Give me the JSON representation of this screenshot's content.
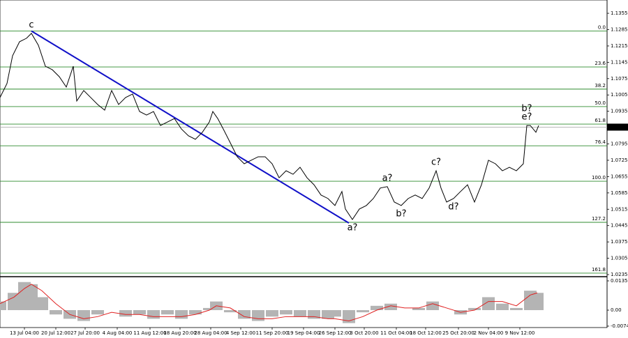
{
  "chart_data": [
    {
      "type": "line",
      "x": [
        0,
        2,
        3.6,
        5.6,
        7.6,
        9,
        11,
        13,
        15,
        17,
        19,
        21,
        22,
        24,
        26,
        28,
        30,
        32,
        34,
        36,
        38,
        40,
        42,
        44,
        46,
        48,
        50,
        52,
        54,
        56,
        58,
        60,
        61,
        62.4,
        64,
        66,
        68,
        70,
        72,
        74,
        76,
        78,
        80,
        82,
        84,
        86,
        88,
        90,
        92,
        94,
        96,
        98,
        99,
        101,
        103,
        105,
        107,
        109,
        111,
        113,
        115,
        117,
        119,
        121,
        123,
        125,
        126.4,
        128,
        130,
        132,
        134,
        136,
        138,
        140,
        142,
        144,
        146,
        148,
        150,
        151,
        152,
        153.6,
        154.4
      ],
      "values": [
        1.0994,
        1.1054,
        1.1173,
        1.1233,
        1.1248,
        1.1269,
        1.1218,
        1.1128,
        1.1113,
        1.1083,
        1.1039,
        1.1128,
        1.0979,
        1.1024,
        1.0994,
        1.0964,
        1.094,
        1.1024,
        1.0964,
        1.0994,
        1.1009,
        1.0934,
        1.0919,
        1.0934,
        1.0874,
        1.0889,
        1.0904,
        1.0859,
        1.083,
        1.0815,
        1.0845,
        1.0889,
        1.0934,
        1.0904,
        1.0859,
        1.08,
        1.074,
        1.071,
        1.0725,
        1.074,
        1.074,
        1.071,
        1.065,
        1.068,
        1.0665,
        1.0695,
        1.065,
        1.062,
        1.0576,
        1.0561,
        1.0531,
        1.0591,
        1.0516,
        1.0471,
        1.0516,
        1.0531,
        1.0561,
        1.0606,
        1.0612,
        1.0546,
        1.0531,
        1.0561,
        1.0576,
        1.0561,
        1.0606,
        1.068,
        1.0606,
        1.0546,
        1.0561,
        1.0591,
        1.062,
        1.0546,
        1.062,
        1.0725,
        1.071,
        1.068,
        1.0695,
        1.068,
        1.071,
        1.0874,
        1.0874,
        1.0845,
        1.0874
      ],
      "color": "#000000",
      "xlim": [
        0,
        174
      ],
      "ylim": [
        1.0226,
        1.1412
      ],
      "yticks": [
        1.1355,
        1.1285,
        1.1215,
        1.1145,
        1.1075,
        1.1005,
        1.0935,
        1.0865,
        1.0795,
        1.0725,
        1.0655,
        1.0585,
        1.0515,
        1.0445,
        1.0375,
        1.0305,
        1.0235
      ],
      "xticks": [
        {
          "value": 7,
          "label": "13 Jul 04:00"
        },
        {
          "value": 16,
          "label": "20 Jul 12:00"
        },
        {
          "value": 24.4,
          "label": "27 Jul 20:00"
        },
        {
          "value": 33.6,
          "label": "4 Aug 04:00"
        },
        {
          "value": 43,
          "label": "11 Aug 12:00"
        },
        {
          "value": 51.6,
          "label": "18 Aug 20:00"
        },
        {
          "value": 60.4,
          "label": "28 Aug 04:00"
        },
        {
          "value": 69,
          "label": "4 Sep 12:00"
        },
        {
          "value": 78,
          "label": "11 Sep 20:00"
        },
        {
          "value": 87,
          "label": "19 Sep 04:00"
        },
        {
          "value": 96,
          "label": "26 Sep 12:00"
        },
        {
          "value": 104.4,
          "label": "3 Oct 20:00"
        },
        {
          "value": 113.6,
          "label": "11 Oct 04:00"
        },
        {
          "value": 122,
          "label": "18 Oct 12:00"
        },
        {
          "value": 131.4,
          "label": "25 Oct 20:00"
        },
        {
          "value": 140,
          "label": "2 Nov 04:00"
        },
        {
          "value": 149,
          "label": "9 Nov 12:00"
        }
      ],
      "levels": [
        {
          "value": 1.1279,
          "label": "0.0"
        },
        {
          "value": 1.1125,
          "label": "23.6"
        },
        {
          "value": 1.103,
          "label": "38.2"
        },
        {
          "value": 1.0955,
          "label": "50.0"
        },
        {
          "value": 1.088,
          "label": "61.8"
        },
        {
          "value": 1.0787,
          "label": "76.4"
        },
        {
          "value": 1.0635,
          "label": "100.0"
        },
        {
          "value": 1.0459,
          "label": "127.2"
        },
        {
          "value": 1.0241,
          "label": "161.8"
        }
      ],
      "level_color": "#2e8b2e",
      "trendline": {
        "x": [
          9,
          100
        ],
        "values": [
          1.1279,
          1.0456
        ],
        "color": "#1010c8"
      },
      "last_price": 1.0867,
      "annotations": [
        {
          "text": "c",
          "point": 5,
          "color": "#1010c8",
          "position": "above"
        },
        {
          "text": "a?",
          "point": 53,
          "color": "#1010c8",
          "position": "below"
        },
        {
          "text": "a?",
          "point": 58,
          "color": "#e03030",
          "position": "above"
        },
        {
          "text": "b?",
          "point": 60,
          "color": "#e03030",
          "position": "below"
        },
        {
          "text": "c?",
          "point": 65,
          "color": "#e03030",
          "position": "above"
        },
        {
          "text": "d?",
          "point": 68,
          "color": "#e03030",
          "position": "below"
        },
        {
          "text": "e?",
          "point": 79,
          "color": "#e03030",
          "position": "above"
        },
        {
          "text": "b?",
          "point": 79,
          "color": "#1010c8",
          "position": "above"
        }
      ]
    },
    {
      "type": "bar",
      "x": [
        0,
        4,
        7,
        9,
        12,
        16,
        20,
        24,
        28,
        32,
        36,
        40,
        44,
        48,
        52,
        56,
        60,
        62,
        66,
        70,
        74,
        78,
        82,
        86,
        90,
        94,
        96,
        100,
        104,
        108,
        112,
        116,
        120,
        124,
        128,
        132,
        136,
        140,
        144,
        148,
        152,
        154
      ],
      "values": [
        0.004,
        0.008,
        0.013,
        0.012,
        0.006,
        -0.002,
        -0.004,
        -0.005,
        -0.002,
        0.0,
        -0.003,
        -0.002,
        -0.004,
        -0.002,
        -0.004,
        -0.002,
        0.001,
        0.004,
        -0.001,
        -0.004,
        -0.005,
        -0.003,
        -0.002,
        -0.003,
        -0.004,
        -0.004,
        -0.003,
        -0.006,
        -0.001,
        0.002,
        0.003,
        0.0,
        0.001,
        0.004,
        0.0,
        -0.002,
        0.001,
        0.006,
        0.003,
        0.001,
        0.009,
        0.008
      ],
      "color": "#b4b4b4",
      "signal": {
        "color": "#e02020",
        "values": [
          0.003,
          0.006,
          0.01,
          0.012,
          0.009,
          0.003,
          -0.002,
          -0.004,
          -0.003,
          -0.001,
          -0.002,
          -0.002,
          -0.003,
          -0.003,
          -0.003,
          -0.002,
          0.0,
          0.002,
          0.001,
          -0.003,
          -0.004,
          -0.004,
          -0.003,
          -0.003,
          -0.003,
          -0.004,
          -0.004,
          -0.005,
          -0.003,
          0.0,
          0.002,
          0.001,
          0.001,
          0.003,
          0.001,
          -0.001,
          0.0,
          0.004,
          0.004,
          0.002,
          0.007,
          0.008
        ]
      },
      "xlim": [
        0,
        174
      ],
      "ylim": [
        -0.00806,
        0.01549
      ],
      "yticks": [
        0.01355,
        {
          "value": 0,
          "label": "0.00"
        },
        -0.0074
      ]
    }
  ]
}
